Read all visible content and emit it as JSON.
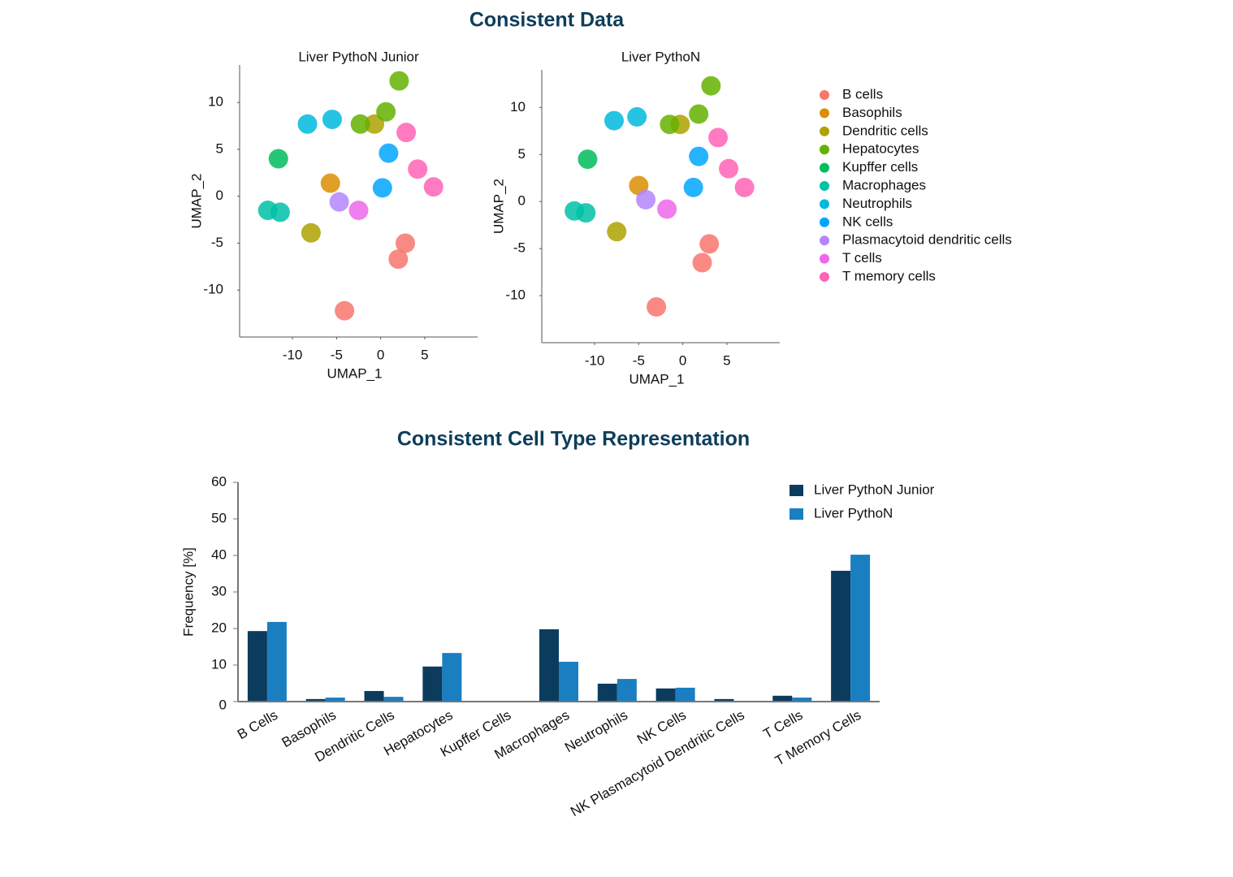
{
  "title": "Consistent Data",
  "chart_data": [
    {
      "type": "scatter",
      "title": "Liver PythoN Junior",
      "xlabel": "UMAP_1",
      "ylabel": "UMAP_2",
      "xlim": [
        -16,
        11
      ],
      "ylim": [
        -15,
        14
      ],
      "xticks": [
        -10,
        -5,
        0,
        5
      ],
      "yticks": [
        -10,
        -5,
        0,
        5,
        10
      ],
      "legend": "right",
      "series": [
        {
          "name": "B cells",
          "color": "#f8766d",
          "x": [
            2,
            2.8,
            -4.1
          ],
          "y": [
            -6.7,
            -5,
            -12.2
          ]
        },
        {
          "name": "Basophils",
          "color": "#db8e00",
          "x": [
            -5.7
          ],
          "y": [
            1.4
          ]
        },
        {
          "name": "Dendritic cells",
          "color": "#aea200",
          "x": [
            -7.9,
            -0.7
          ],
          "y": [
            -3.9,
            7.7
          ]
        },
        {
          "name": "Hepatocytes",
          "color": "#64b200",
          "x": [
            0.6,
            2.1,
            -2.3
          ],
          "y": [
            9,
            12.3,
            7.7
          ]
        },
        {
          "name": "Kupffer cells",
          "color": "#00bd5c",
          "x": [
            -11.6
          ],
          "y": [
            4
          ]
        },
        {
          "name": "Macrophages",
          "color": "#00c1a7",
          "x": [
            -11.4,
            -12.8
          ],
          "y": [
            -1.7,
            -1.5
          ]
        },
        {
          "name": "Neutrophils",
          "color": "#00bade",
          "x": [
            -8.3,
            -5.5
          ],
          "y": [
            7.7,
            8.2
          ]
        },
        {
          "name": "NK cells",
          "color": "#00a6ff",
          "x": [
            0.2,
            0.9
          ],
          "y": [
            0.9,
            4.6
          ]
        },
        {
          "name": "Plasmacytoid dendritic cells",
          "color": "#b385ff",
          "x": [
            -4.7
          ],
          "y": [
            -0.6
          ]
        },
        {
          "name": "T cells",
          "color": "#ef67eb",
          "x": [
            -2.5
          ],
          "y": [
            -1.5
          ]
        },
        {
          "name": "T memory cells",
          "color": "#ff63b6",
          "x": [
            4.2,
            2.9,
            6
          ],
          "y": [
            2.9,
            6.8,
            1
          ]
        }
      ]
    },
    {
      "type": "scatter",
      "title": "Liver PythoN",
      "xlabel": "UMAP_1",
      "ylabel": "UMAP_2",
      "xlim": [
        -16,
        11
      ],
      "ylim": [
        -15,
        14
      ],
      "xticks": [
        -10,
        -5,
        0,
        5
      ],
      "yticks": [
        -10,
        -5,
        0,
        5,
        10
      ],
      "series": [
        {
          "color": "#f8766d",
          "x": [
            2.2,
            3,
            -3
          ],
          "y": [
            -6.5,
            -4.5,
            -11.2
          ]
        },
        {
          "color": "#db8e00",
          "x": [
            -5
          ],
          "y": [
            1.7
          ]
        },
        {
          "color": "#aea200",
          "x": [
            -7.5,
            -0.3
          ],
          "y": [
            -3.2,
            8.2
          ]
        },
        {
          "color": "#64b200",
          "x": [
            1.8,
            3.2,
            -1.5
          ],
          "y": [
            9.3,
            12.3,
            8.2
          ]
        },
        {
          "color": "#00bd5c",
          "x": [
            -10.8
          ],
          "y": [
            4.5
          ]
        },
        {
          "color": "#00c1a7",
          "x": [
            -11,
            -12.3
          ],
          "y": [
            -1.2,
            -1
          ]
        },
        {
          "color": "#00bade",
          "x": [
            -7.8,
            -5.2
          ],
          "y": [
            8.6,
            9
          ]
        },
        {
          "color": "#00a6ff",
          "x": [
            1.2,
            1.8
          ],
          "y": [
            1.5,
            4.8
          ]
        },
        {
          "color": "#b385ff",
          "x": [
            -4.2
          ],
          "y": [
            0.2
          ]
        },
        {
          "color": "#ef67eb",
          "x": [
            -1.8
          ],
          "y": [
            -0.8
          ]
        },
        {
          "color": "#ff63b6",
          "x": [
            5.2,
            4,
            7
          ],
          "y": [
            3.5,
            6.8,
            1.5
          ]
        }
      ]
    },
    {
      "type": "bar",
      "title": "Consistent Cell Type Representation",
      "ylabel": "Frequency [%]",
      "categories": [
        "B Cells",
        "Basophils",
        "Dendritic Cells",
        "Hepatocytes",
        "Kupffer Cells",
        "Macrophages",
        "Neutrophils",
        "NK Cells",
        "NK Plasmacytoid Dendritic Cells",
        "T Cells",
        "T Memory Cells"
      ],
      "ylim": [
        0,
        60
      ],
      "yticks": [
        0,
        10,
        20,
        30,
        40,
        50,
        60
      ],
      "legend": "upper right",
      "series": [
        {
          "name": "Liver PythoN Junior",
          "color": "#0b3c5d",
          "values": [
            19.3,
            0.7,
            2.9,
            9.6,
            0.2,
            19.8,
            4.9,
            3.6,
            0.7,
            1.6,
            35.8
          ]
        },
        {
          "name": "Liver PythoN",
          "color": "#1a7fc1",
          "values": [
            21.8,
            1.1,
            1.3,
            13.3,
            0.2,
            10.9,
            6.2,
            3.8,
            0.2,
            1.1,
            40.2
          ]
        }
      ]
    }
  ]
}
